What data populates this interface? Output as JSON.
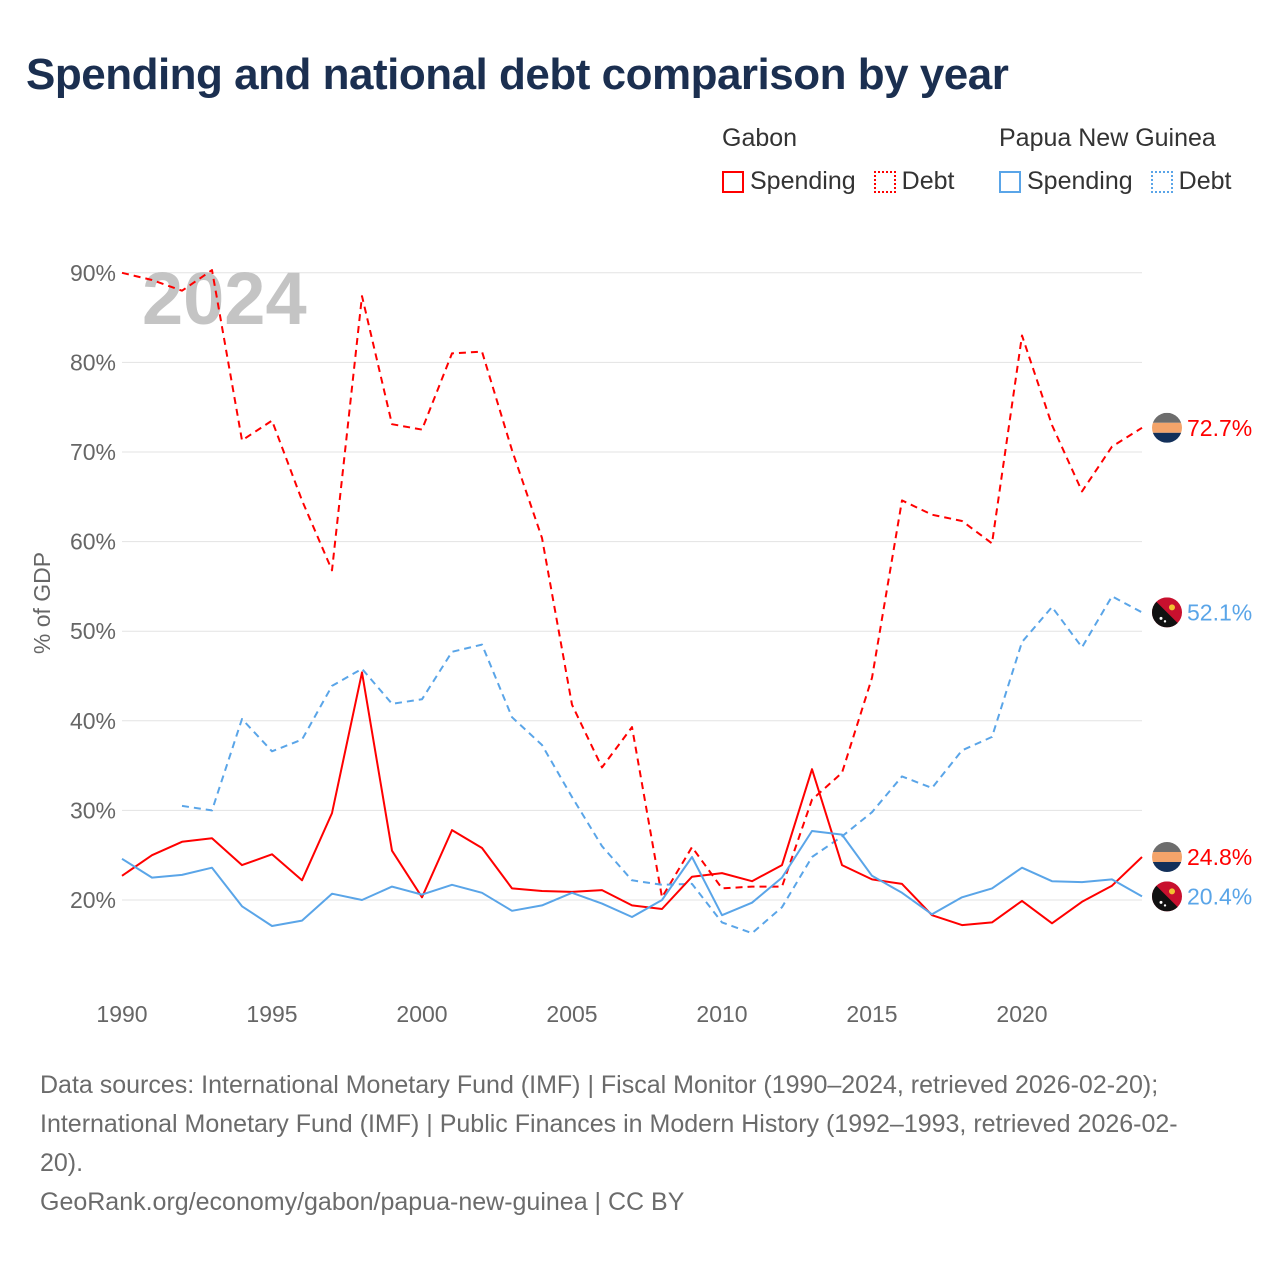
{
  "title": "Spending and national debt comparison by year",
  "legend": {
    "groups": [
      {
        "name": "Gabon",
        "items": [
          "Spending",
          "Debt"
        ],
        "color": "#ff0000"
      },
      {
        "name": "Papua New Guinea",
        "items": [
          "Spending",
          "Debt"
        ],
        "color": "#5aa5e8"
      }
    ]
  },
  "chart_data": {
    "type": "line",
    "title": "Spending and national debt comparison by year",
    "ylabel": "% of GDP",
    "xlabel": "",
    "year_watermark": "2024",
    "ylim": [
      10,
      95
    ],
    "xlim": [
      1990,
      2024
    ],
    "yticks": [
      20,
      30,
      40,
      50,
      60,
      70,
      80,
      90
    ],
    "ytick_labels": [
      "20%",
      "30%",
      "40%",
      "50%",
      "60%",
      "70%",
      "80%",
      "90%"
    ],
    "xticks": [
      1990,
      1995,
      2000,
      2005,
      2010,
      2015,
      2020
    ],
    "xtick_labels": [
      "1990",
      "1995",
      "2000",
      "2005",
      "2010",
      "2015",
      "2020"
    ],
    "grid": true,
    "legend_position": "top-right",
    "series": [
      {
        "name": "Gabon Debt",
        "country": "Gabon",
        "color": "#ff0000",
        "dash": true,
        "start": 1990,
        "values": [
          90,
          89.2,
          88,
          90.3,
          71.3,
          73.5,
          64.6,
          56.8,
          87.4,
          73.1,
          72.5,
          81,
          81.2,
          70.2,
          60.4,
          41.8,
          34.8,
          39.3,
          20.3,
          25.9,
          21.3,
          21.5,
          21.5,
          31.2,
          34.2,
          44.8,
          64.6,
          63,
          62.3,
          59.8,
          83,
          73,
          65.6,
          70.6,
          72.7
        ],
        "end_label": "72.7%"
      },
      {
        "name": "Papua New Guinea Debt",
        "country": "Papua New Guinea",
        "color": "#5aa5e8",
        "dash": true,
        "start": 1992,
        "values": [
          30.5,
          30,
          40.2,
          36.6,
          37.9,
          43.9,
          45.8,
          41.9,
          42.4,
          47.7,
          48.5,
          40.4,
          37.3,
          31.5,
          26,
          22.2,
          21.7,
          21.8,
          17.5,
          16.3,
          19.2,
          24.8,
          27.1,
          29.8,
          33.8,
          32.5,
          36.7,
          38.2,
          48.8,
          52.7,
          48.2,
          53.9,
          52.1
        ],
        "end_label": "52.1%"
      },
      {
        "name": "Gabon Spending",
        "country": "Gabon",
        "color": "#ff0000",
        "dash": false,
        "start": 1990,
        "values": [
          22.7,
          25,
          26.5,
          26.9,
          23.9,
          25.1,
          22.2,
          29.7,
          45.4,
          25.5,
          20.3,
          27.8,
          25.8,
          21.3,
          21,
          20.9,
          21.1,
          19.4,
          19,
          22.6,
          23,
          22.1,
          23.9,
          34.6,
          23.9,
          22.3,
          21.8,
          18.3,
          17.2,
          17.5,
          19.9,
          17.4,
          19.8,
          21.6,
          24.8
        ],
        "end_label": "24.8%"
      },
      {
        "name": "Papua New Guinea Spending",
        "country": "Papua New Guinea",
        "color": "#5aa5e8",
        "dash": false,
        "start": 1990,
        "values": [
          24.6,
          22.5,
          22.8,
          23.6,
          19.3,
          17.1,
          17.7,
          20.7,
          20,
          21.5,
          20.6,
          21.7,
          20.8,
          18.8,
          19.4,
          20.8,
          19.6,
          18.1,
          20,
          24.8,
          18.3,
          19.7,
          22.5,
          27.7,
          27.3,
          22.7,
          20.8,
          18.4,
          20.3,
          21.3,
          23.6,
          22.1,
          22,
          22.3,
          20.4
        ],
        "end_label": "20.4%"
      }
    ]
  },
  "footer": {
    "line1": "Data sources: International Monetary Fund (IMF) | Fiscal Monitor (1990–2024, retrieved 2026-02-20);",
    "line2": "International Monetary Fund (IMF) | Public Finances in Modern History (1992–1993, retrieved 2026-02-",
    "line3": "20).",
    "line4": "GeoRank.org/economy/gabon/papua-new-guinea | CC BY"
  }
}
